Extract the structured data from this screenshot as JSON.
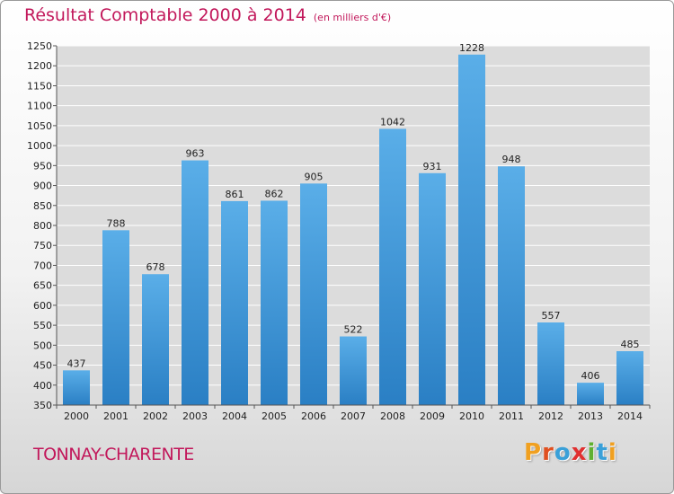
{
  "header": {
    "title": "Résultat Comptable 2000 à 2014",
    "subtitle": "(en milliers d'€)"
  },
  "footer": {
    "commune": "TONNAY-CHARENTE",
    "logo_text": "Proxiti"
  },
  "colors": {
    "title": "#c2185b",
    "bar_top": "#5aaee8",
    "bar_bottom": "#2a7fc4",
    "grid": "#ffffff",
    "plot_bg": "#dcdcdc",
    "logo": [
      "#f0a020",
      "#e05020",
      "#3aa0d8",
      "#e03030",
      "#60b030",
      "#3aa0d8",
      "#f0a020"
    ]
  },
  "chart_data": {
    "type": "bar",
    "categories": [
      "2000",
      "2001",
      "2002",
      "2003",
      "2004",
      "2005",
      "2006",
      "2007",
      "2008",
      "2009",
      "2010",
      "2011",
      "2012",
      "2013",
      "2014"
    ],
    "values": [
      437,
      788,
      678,
      963,
      861,
      862,
      905,
      522,
      1042,
      931,
      1228,
      948,
      557,
      406,
      485
    ],
    "title": "Résultat Comptable 2000 à 2014",
    "subtitle": "(en milliers d'€)",
    "xlabel": "",
    "ylabel": "",
    "ylim": [
      350,
      1250
    ],
    "yticks": [
      350,
      400,
      450,
      500,
      550,
      600,
      650,
      700,
      750,
      800,
      850,
      900,
      950,
      1000,
      1050,
      1100,
      1150,
      1200,
      1250
    ],
    "grid": true,
    "legend": "none"
  }
}
